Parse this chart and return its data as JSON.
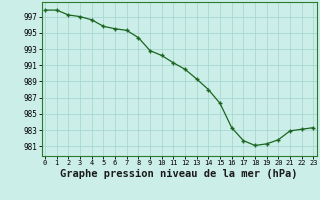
{
  "x": [
    0,
    1,
    2,
    3,
    4,
    5,
    6,
    7,
    8,
    9,
    10,
    11,
    12,
    13,
    14,
    15,
    16,
    17,
    18,
    19,
    20,
    21,
    22,
    23
  ],
  "y": [
    997.8,
    997.8,
    997.2,
    997.0,
    996.6,
    995.8,
    995.5,
    995.3,
    994.4,
    992.8,
    992.2,
    991.3,
    990.5,
    989.3,
    988.0,
    986.3,
    983.3,
    981.7,
    981.1,
    981.3,
    981.8,
    982.9,
    983.1,
    983.3
  ],
  "bg_color": "#cceee8",
  "grid_color": "#aad8d2",
  "line_color": "#1a6620",
  "marker_color": "#1a6620",
  "xlabel": "Graphe pression niveau de la mer (hPa)",
  "xlabel_fontsize": 7.5,
  "xtick_labels": [
    "0",
    "1",
    "2",
    "3",
    "4",
    "5",
    "6",
    "7",
    "8",
    "9",
    "10",
    "11",
    "12",
    "13",
    "14",
    "15",
    "16",
    "17",
    "18",
    "19",
    "20",
    "21",
    "22",
    "23"
  ],
  "yticks": [
    981,
    983,
    985,
    987,
    989,
    991,
    993,
    995,
    997
  ],
  "ylim": [
    979.8,
    998.8
  ],
  "xlim": [
    -0.3,
    23.3
  ]
}
